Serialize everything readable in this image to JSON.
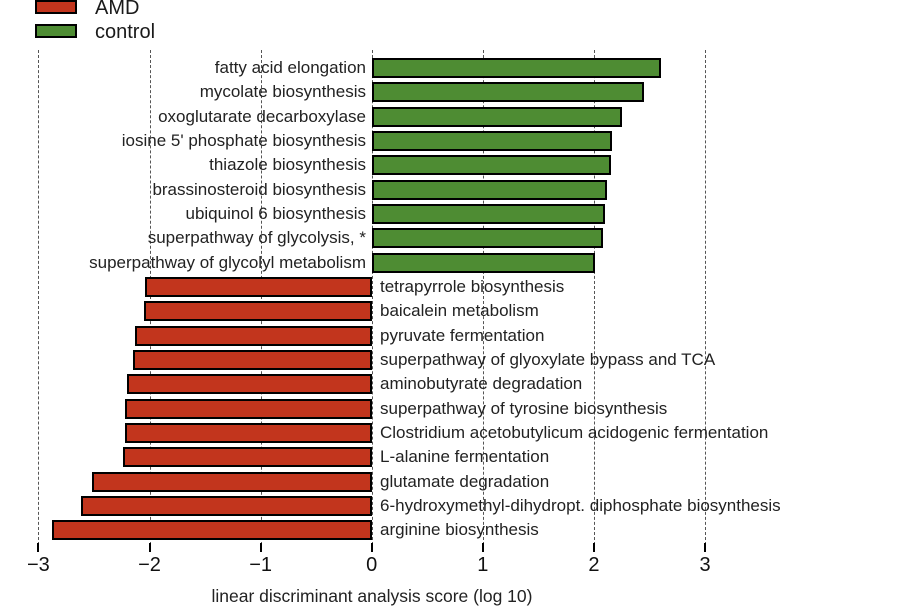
{
  "legend": {
    "items": [
      {
        "label": "AMD",
        "color": "#c2351d"
      },
      {
        "label": "control",
        "color": "#4e8c33"
      }
    ]
  },
  "chart_data": {
    "type": "bar",
    "orientation": "horizontal",
    "title": "",
    "xlabel": "linear discriminant analysis score (log 10)",
    "xlim": [
      -3,
      3
    ],
    "grid": "dashed-vertical",
    "legend_position": "top-left",
    "tick_values": [
      -3,
      -2,
      -1,
      0,
      1,
      2,
      3
    ],
    "tick_labels": [
      "−3",
      "−2",
      "−1",
      "0",
      "1",
      "2",
      "3"
    ],
    "bar_border_color": "#000000",
    "series": [
      {
        "name": "control",
        "color": "#4e8c33",
        "label_side": "left",
        "items": [
          {
            "label": "fatty acid elongation",
            "value": 2.6
          },
          {
            "label": "mycolate biosynthesis",
            "value": 2.45
          },
          {
            "label": "oxoglutarate decarboxylase",
            "value": 2.25
          },
          {
            "label": "iosine 5' phosphate biosynthesis",
            "value": 2.16
          },
          {
            "label": "thiazole biosynthesis",
            "value": 2.15
          },
          {
            "label": "brassinosteroid biosynthesis",
            "value": 2.12
          },
          {
            "label": "ubiquinol 6 biosynthesis",
            "value": 2.1
          },
          {
            "label": "superpathway of glycolysis, *",
            "value": 2.08
          },
          {
            "label": "superpathway of glycolyl metabolism",
            "value": 2.01
          }
        ]
      },
      {
        "name": "AMD",
        "color": "#c2351d",
        "label_side": "right",
        "items": [
          {
            "label": "tetrapyrrole biosynthesis",
            "value": -2.04
          },
          {
            "label": "baicalein metabolism",
            "value": -2.05
          },
          {
            "label": "pyruvate fermentation",
            "value": -2.13
          },
          {
            "label": "superpathway of glyoxylate bypass and TCA",
            "value": -2.15
          },
          {
            "label": "aminobutyrate degradation",
            "value": -2.2
          },
          {
            "label": "superpathway of tyrosine biosynthesis",
            "value": -2.22
          },
          {
            "label": "Clostridium acetobutylicum acidogenic fermentation",
            "value": -2.22
          },
          {
            "label": "L-alanine fermentation",
            "value": -2.24
          },
          {
            "label": "glutamate degradation",
            "value": -2.52
          },
          {
            "label": "6-hydroxymethyl-dihydropt. diphosphate biosynthesis",
            "value": -2.62
          },
          {
            "label": "arginine biosynthesis",
            "value": -2.88
          }
        ]
      }
    ]
  }
}
